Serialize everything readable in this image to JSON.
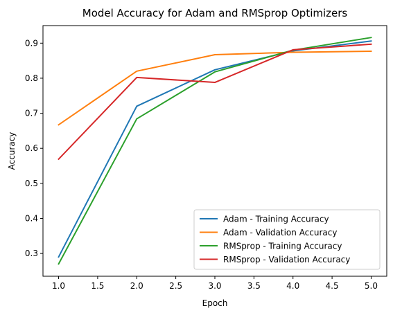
{
  "chart_data": {
    "type": "line",
    "title": "Model Accuracy for Adam and RMSprop Optimizers",
    "xlabel": "Epoch",
    "ylabel": "Accuracy",
    "xlim": [
      0.8,
      5.2
    ],
    "ylim": [
      0.235,
      0.95
    ],
    "x_ticks": [
      "1.0",
      "1.5",
      "2.0",
      "2.5",
      "3.0",
      "3.5",
      "4.0",
      "4.5",
      "5.0"
    ],
    "y_ticks": [
      "0.3",
      "0.4",
      "0.5",
      "0.6",
      "0.7",
      "0.8",
      "0.9"
    ],
    "grid": false,
    "legend_position": "lower-right",
    "x": [
      1,
      2,
      3,
      4,
      5
    ],
    "series": [
      {
        "name": "Adam - Training Accuracy",
        "color": "#1f77b4",
        "values": [
          0.29,
          0.72,
          0.824,
          0.878,
          0.906
        ]
      },
      {
        "name": "Adam - Validation Accuracy",
        "color": "#ff7f0e",
        "values": [
          0.667,
          0.82,
          0.867,
          0.874,
          0.877
        ]
      },
      {
        "name": "RMSprop - Training Accuracy",
        "color": "#2ca02c",
        "values": [
          0.27,
          0.684,
          0.818,
          0.88,
          0.916
        ]
      },
      {
        "name": "RMSprop - Validation Accuracy",
        "color": "#d62728",
        "values": [
          0.569,
          0.802,
          0.788,
          0.881,
          0.897
        ]
      }
    ]
  }
}
